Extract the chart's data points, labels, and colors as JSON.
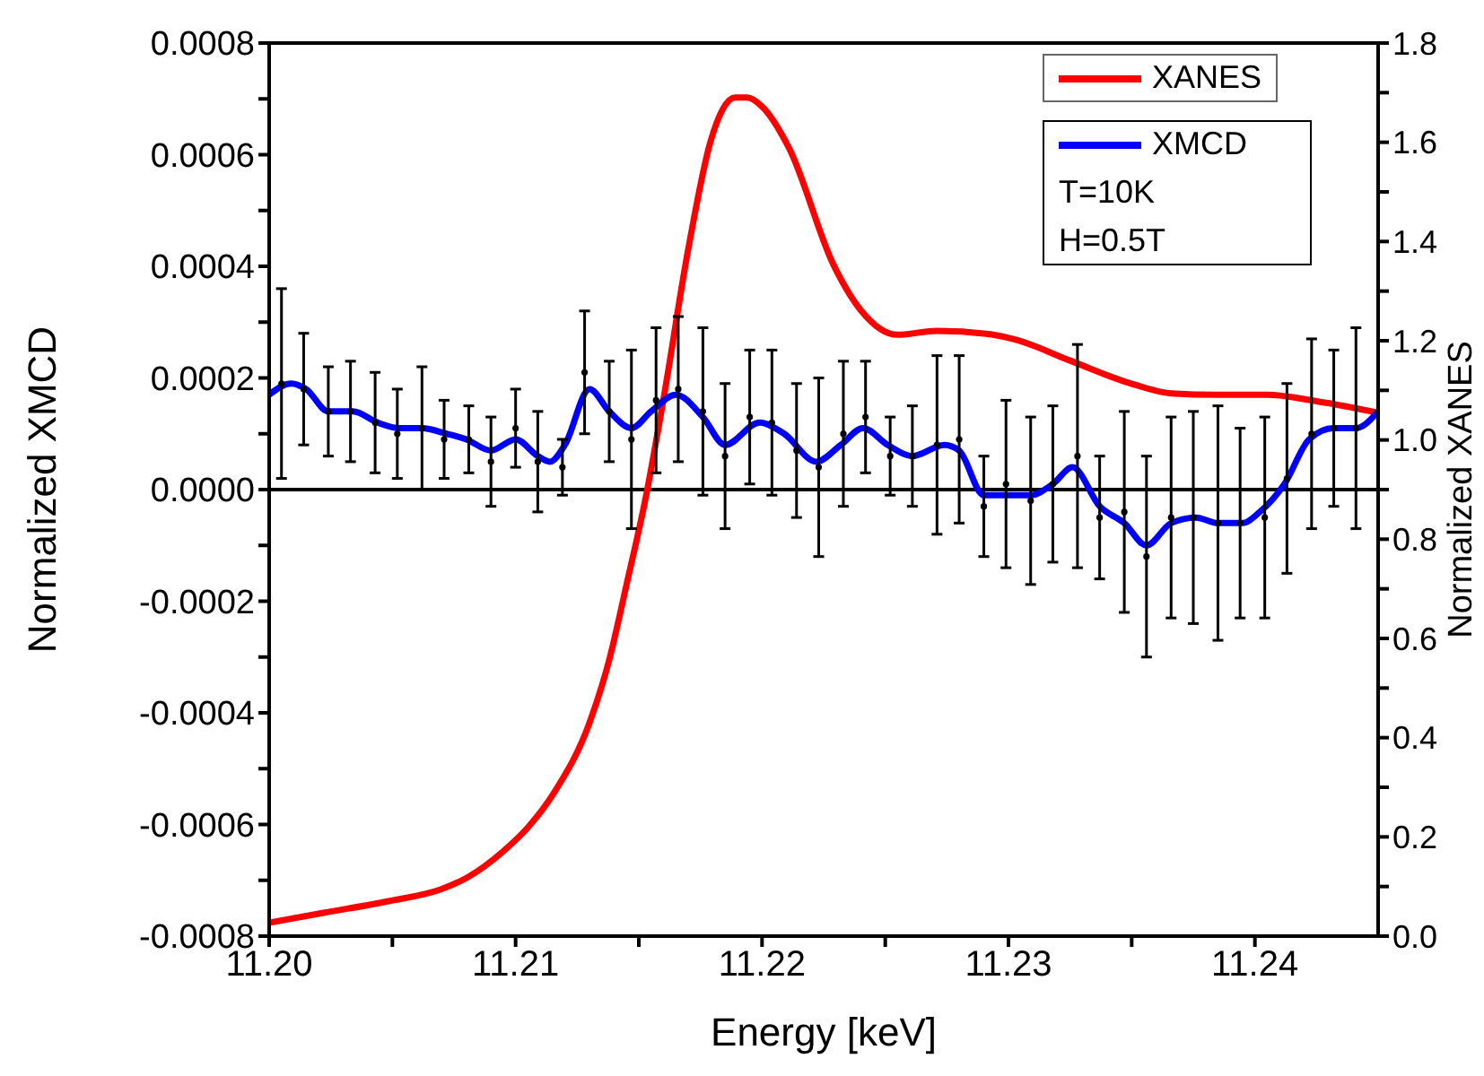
{
  "chart_data": {
    "type": "line",
    "xlabel": "Energy [keV]",
    "ylabel": "Normalized XMCD",
    "y2label": "Normalized XANES",
    "xlim": [
      11.2,
      11.245
    ],
    "xticks": [
      {
        "value": 11.2,
        "label": "11.20"
      },
      {
        "value": 11.205,
        "label": null
      },
      {
        "value": 11.21,
        "label": "11.21"
      },
      {
        "value": 11.215,
        "label": null
      },
      {
        "value": 11.22,
        "label": "11.22"
      },
      {
        "value": 11.225,
        "label": null
      },
      {
        "value": 11.23,
        "label": "11.23"
      },
      {
        "value": 11.235,
        "label": null
      },
      {
        "value": 11.24,
        "label": "11.24"
      }
    ],
    "ylim": [
      -0.0008,
      0.0008
    ],
    "yticks": [
      {
        "value": -0.0008,
        "label": "-0.0008"
      },
      {
        "value": -0.0007,
        "label": null
      },
      {
        "value": -0.0006,
        "label": "-0.0006"
      },
      {
        "value": -0.0005,
        "label": null
      },
      {
        "value": -0.0004,
        "label": "-0.0004"
      },
      {
        "value": -0.0003,
        "label": null
      },
      {
        "value": -0.0002,
        "label": "-0.0002"
      },
      {
        "value": -0.0001,
        "label": null
      },
      {
        "value": 0,
        "label": "0.0000"
      },
      {
        "value": 0.0001,
        "label": null
      },
      {
        "value": 0.0002,
        "label": "0.0002"
      },
      {
        "value": 0.0003,
        "label": null
      },
      {
        "value": 0.0004,
        "label": "0.0004"
      },
      {
        "value": 0.0005,
        "label": null
      },
      {
        "value": 0.0006,
        "label": "0.0006"
      },
      {
        "value": 0.0007,
        "label": null
      },
      {
        "value": 0.0008,
        "label": "0.0008"
      }
    ],
    "y2lim": [
      0,
      1.8
    ],
    "y2ticks": [
      {
        "value": 0,
        "label": "0.0"
      },
      {
        "value": 0.1,
        "label": null
      },
      {
        "value": 0.2,
        "label": "0.2"
      },
      {
        "value": 0.3,
        "label": null
      },
      {
        "value": 0.4,
        "label": "0.4"
      },
      {
        "value": 0.5,
        "label": null
      },
      {
        "value": 0.6,
        "label": "0.6"
      },
      {
        "value": 0.7,
        "label": null
      },
      {
        "value": 0.8,
        "label": "0.8"
      },
      {
        "value": 0.9,
        "label": null
      },
      {
        "value": 1,
        "label": "1.0"
      },
      {
        "value": 1.1,
        "label": null
      },
      {
        "value": 1.2,
        "label": "1.2"
      },
      {
        "value": 1.3,
        "label": null
      },
      {
        "value": 1.4,
        "label": "1.4"
      },
      {
        "value": 1.5,
        "label": null
      },
      {
        "value": 1.6,
        "label": "1.6"
      },
      {
        "value": 1.7,
        "label": null
      },
      {
        "value": 1.8,
        "label": "1.8"
      }
    ],
    "grid": false,
    "legend": "top right",
    "marker": "none",
    "line_style": "solid",
    "ref_lines": [
      {
        "axis": "y",
        "value": 0,
        "color": "#000000"
      }
    ],
    "annotations": [
      "T=10K",
      "H=0.5T"
    ],
    "series": [
      {
        "name": "XANES",
        "axis": "y2",
        "color": "#ff0000",
        "x": [
          11.2,
          11.2022,
          11.2049,
          11.207,
          11.208,
          11.2095,
          11.2105,
          11.2116,
          11.213,
          11.2138,
          11.2145,
          11.2153,
          11.216,
          11.217,
          11.2179,
          11.2184,
          11.2189,
          11.2194,
          11.22,
          11.2211,
          11.2229,
          11.224,
          11.2255,
          11.2271,
          11.2291,
          11.2303,
          11.2325,
          11.2349,
          11.2366,
          11.2385,
          11.2405,
          11.2424,
          11.245
        ],
        "values": [
          0.027,
          0.047,
          0.071,
          0.095,
          0.117,
          0.171,
          0.219,
          0.292,
          0.43,
          0.557,
          0.708,
          0.889,
          1.082,
          1.383,
          1.6,
          1.666,
          1.69,
          1.69,
          1.672,
          1.588,
          1.353,
          1.262,
          1.212,
          1.22,
          1.214,
          1.202,
          1.16,
          1.115,
          1.094,
          1.091,
          1.091,
          1.079,
          1.055
        ]
      },
      {
        "name": "XMCD",
        "color": "#0000ff",
        "x": [
          11.2,
          11.2009,
          11.2015,
          11.2024,
          11.2034,
          11.2044,
          11.2053,
          11.2062,
          11.2072,
          11.208,
          11.209,
          11.21,
          11.2109,
          11.2114,
          11.212,
          11.213,
          11.2138,
          11.2147,
          11.2155,
          11.2165,
          11.2176,
          11.2185,
          11.2199,
          11.2209,
          11.2222,
          11.2232,
          11.2241,
          11.2251,
          11.2261,
          11.2274,
          11.228,
          11.229,
          11.2299,
          11.2309,
          11.2318,
          11.2326,
          11.2337,
          11.2347,
          11.2356,
          11.2366,
          11.2376,
          11.2385,
          11.2395,
          11.2402,
          11.2412,
          11.2422,
          11.2432,
          11.2441,
          11.245
        ],
        "values": [
          0.00017,
          0.00019,
          0.00018,
          0.00014,
          0.00014,
          0.00012,
          0.00011,
          0.00011,
          0.0001,
          9e-05,
          7e-05,
          9e-05,
          6e-05,
          5e-05,
          8e-05,
          0.00018,
          0.00014,
          0.00011,
          0.00014,
          0.00017,
          0.00013,
          8e-05,
          0.00012,
          0.0001,
          5e-05,
          8e-05,
          0.00011,
          8e-05,
          6e-05,
          8e-05,
          7e-05,
          -1e-05,
          -1e-05,
          -1e-05,
          1e-05,
          4e-05,
          -3e-05,
          -6e-05,
          -0.0001,
          -6e-05,
          -5e-05,
          -6e-05,
          -6e-05,
          -4e-05,
          1e-05,
          9e-05,
          0.00011,
          0.00011,
          0.00014
        ]
      },
      {
        "type": "scatter",
        "marker": "circle",
        "color": "#000000",
        "x": [
          11.2005,
          11.2014,
          11.2024,
          11.2033,
          11.2043,
          11.2052,
          11.2062,
          11.2071,
          11.2081,
          11.209,
          11.21,
          11.2109,
          11.2119,
          11.2128,
          11.2138,
          11.2147,
          11.2157,
          11.2166,
          11.2176,
          11.2185,
          11.2195,
          11.2204,
          11.2214,
          11.2223,
          11.2233,
          11.2242,
          11.2252,
          11.2261,
          11.2271,
          11.228,
          11.229,
          11.2299,
          11.2309,
          11.2318,
          11.2328,
          11.2337,
          11.2347,
          11.2356,
          11.2366,
          11.2375,
          11.2385,
          11.2394,
          11.2404,
          11.2413,
          11.2423,
          11.2432,
          11.2441
        ],
        "values": [
          0.00019,
          0.00018,
          0.00014,
          0.00014,
          0.00012,
          0.0001,
          0.00011,
          9e-05,
          9e-05,
          5e-05,
          0.00011,
          5e-05,
          4e-05,
          0.00021,
          0.00014,
          9e-05,
          0.00016,
          0.00018,
          0.00014,
          6e-05,
          0.00013,
          0.00012,
          7e-05,
          4e-05,
          0.0001,
          0.00013,
          6e-05,
          6e-05,
          8e-05,
          9e-05,
          -3e-05,
          1e-05,
          -2e-05,
          1e-05,
          6e-05,
          -5e-05,
          -4e-05,
          -0.00012,
          -5e-05,
          -5e-05,
          -6e-05,
          -6e-05,
          -5e-05,
          2e-05,
          0.0001,
          0.00011,
          0.00011
        ],
        "errors": [
          0.00017,
          0.0001,
          8e-05,
          9e-05,
          9e-05,
          8e-05,
          0.00011,
          7e-05,
          6e-05,
          8e-05,
          7e-05,
          9e-05,
          5e-05,
          0.00011,
          9e-05,
          0.00016,
          0.00013,
          0.00013,
          0.00015,
          0.00013,
          0.00012,
          0.00013,
          0.00012,
          0.00016,
          0.00013,
          0.0001,
          7e-05,
          9e-05,
          0.00016,
          0.00015,
          9e-05,
          0.00015,
          0.00015,
          0.00014,
          0.0002,
          0.00011,
          0.00018,
          0.00018,
          0.00018,
          0.00019,
          0.00021,
          0.00017,
          0.00018,
          0.00017,
          0.00017,
          0.00014,
          0.00018
        ]
      }
    ]
  }
}
